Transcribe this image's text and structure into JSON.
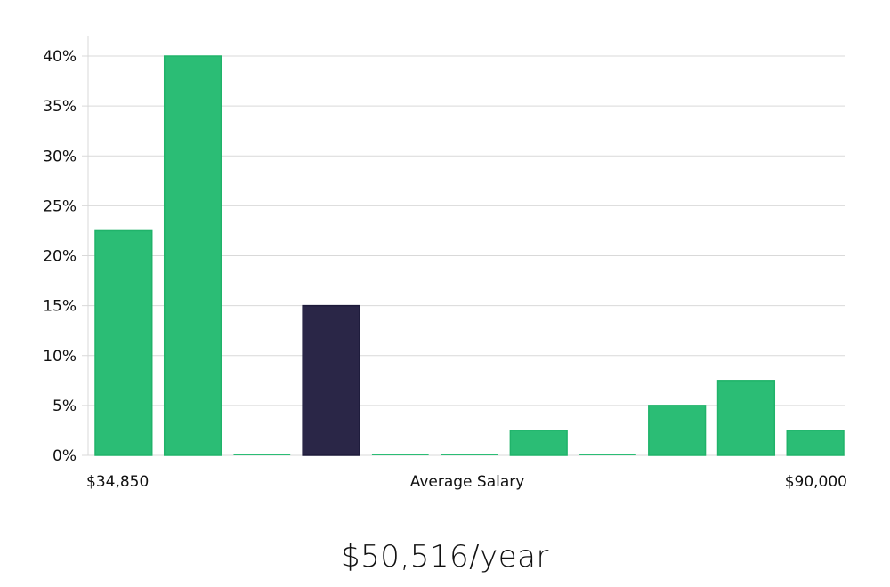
{
  "chart_data": {
    "type": "bar",
    "categories": [
      "1",
      "2",
      "3",
      "4",
      "5",
      "6",
      "7",
      "8",
      "9",
      "10",
      "11"
    ],
    "values": [
      22.5,
      40,
      0,
      15,
      0,
      0,
      2.5,
      0,
      5,
      7.5,
      2.5
    ],
    "highlight_index": 3,
    "ylim": [
      0,
      42
    ],
    "yticks": [
      0,
      5,
      10,
      15,
      20,
      25,
      30,
      35,
      40
    ],
    "ytick_suffix": "%",
    "x_min_label": "$34,850",
    "x_max_label": "$90,000",
    "xlabel": "Average Salary",
    "grid": true,
    "colors": {
      "bar": "#2bbd75",
      "bar_stroke": "#20b36a",
      "highlight": "#2a2647",
      "highlight_stroke": "#1d1a3a",
      "grid": "#d9d9d9"
    }
  },
  "summary": {
    "salary_text": "$50,516/year"
  }
}
